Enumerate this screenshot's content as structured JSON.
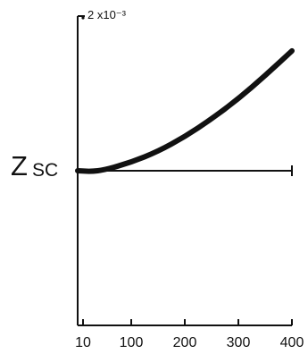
{
  "chart_data": {
    "type": "line",
    "ylabel_main": "Z",
    "ylabel_sub": "SC",
    "x_ticks": [
      {
        "value": 10,
        "label": "10"
      },
      {
        "value": 100,
        "label": "100"
      },
      {
        "value": 200,
        "label": "200"
      },
      {
        "value": 300,
        "label": "300"
      },
      {
        "value": 400,
        "label": "400"
      }
    ],
    "y_tick": {
      "value": 0.002,
      "label": "2 x10⁻³"
    },
    "xlim": [
      0,
      400
    ],
    "ylim": [
      -0.002,
      0.002
    ],
    "series": [
      {
        "x": [
          0,
          25,
          50,
          100,
          150,
          200,
          250,
          300,
          350,
          400
        ],
        "y": [
          0,
          -1e-05,
          1e-05,
          0.00011,
          0.00025,
          0.00044,
          0.00067,
          0.00093,
          0.00123,
          0.00155
        ]
      }
    ],
    "colors": {
      "axis": "#111111",
      "line": "#111111"
    }
  }
}
